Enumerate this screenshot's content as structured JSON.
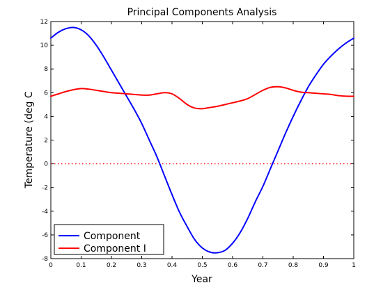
{
  "chart_data": {
    "type": "line",
    "title": "Principal Components Analysis",
    "xlabel": "Year",
    "ylabel": "Temperature (deg C",
    "xlim": [
      0,
      1
    ],
    "ylim": [
      -8,
      12
    ],
    "xticks": [
      0,
      0.1,
      0.2,
      0.3,
      0.4,
      0.5,
      0.6,
      0.7,
      0.8,
      0.9,
      1
    ],
    "xtick_labels": [
      "0",
      "0.1",
      "0.2",
      "0.3",
      "0.4",
      "0.5",
      "0.6",
      "0.7",
      "0.8",
      "0.9",
      "1"
    ],
    "yticks": [
      -8,
      -6,
      -4,
      -2,
      0,
      2,
      4,
      6,
      8,
      10,
      12
    ],
    "ytick_labels": [
      "-8",
      "-6",
      "-4",
      "-2",
      "0",
      "2",
      "4",
      "6",
      "8",
      "10",
      "12"
    ],
    "grid": false,
    "legend_placement": "bottom-left",
    "series": [
      {
        "name": "Component",
        "color": "#0000ff",
        "x": [
          0,
          0.025,
          0.05,
          0.075,
          0.1,
          0.125,
          0.15,
          0.175,
          0.2,
          0.225,
          0.25,
          0.275,
          0.3,
          0.325,
          0.35,
          0.375,
          0.4,
          0.425,
          0.45,
          0.475,
          0.5,
          0.525,
          0.55,
          0.575,
          0.6,
          0.625,
          0.65,
          0.675,
          0.7,
          0.725,
          0.75,
          0.775,
          0.8,
          0.825,
          0.85,
          0.875,
          0.9,
          0.925,
          0.95,
          0.975,
          1
        ],
        "y": [
          10.6,
          11.1,
          11.4,
          11.5,
          11.3,
          10.8,
          10.0,
          9.0,
          7.9,
          6.8,
          5.7,
          4.6,
          3.4,
          2.0,
          0.6,
          -1.0,
          -2.6,
          -4.1,
          -5.3,
          -6.4,
          -7.1,
          -7.45,
          -7.5,
          -7.3,
          -6.7,
          -5.8,
          -4.6,
          -3.2,
          -1.9,
          -0.4,
          1.1,
          2.6,
          4.0,
          5.3,
          6.5,
          7.5,
          8.4,
          9.1,
          9.7,
          10.2,
          10.6
        ]
      },
      {
        "name": "Component I",
        "color": "#ff0000",
        "x": [
          0,
          0.025,
          0.05,
          0.075,
          0.1,
          0.125,
          0.15,
          0.175,
          0.2,
          0.225,
          0.25,
          0.275,
          0.3,
          0.325,
          0.35,
          0.375,
          0.4,
          0.425,
          0.45,
          0.475,
          0.5,
          0.525,
          0.55,
          0.575,
          0.6,
          0.625,
          0.65,
          0.675,
          0.7,
          0.725,
          0.75,
          0.775,
          0.8,
          0.825,
          0.85,
          0.875,
          0.9,
          0.925,
          0.95,
          0.975,
          1
        ],
        "y": [
          5.7,
          5.9,
          6.1,
          6.25,
          6.35,
          6.3,
          6.2,
          6.1,
          6.0,
          5.95,
          5.9,
          5.85,
          5.8,
          5.8,
          5.9,
          6.0,
          5.9,
          5.5,
          5.0,
          4.7,
          4.65,
          4.75,
          4.85,
          5.0,
          5.15,
          5.3,
          5.5,
          5.85,
          6.2,
          6.45,
          6.5,
          6.4,
          6.2,
          6.05,
          6.0,
          5.95,
          5.9,
          5.85,
          5.75,
          5.7,
          5.7
        ]
      }
    ],
    "reference_line": {
      "y": 0,
      "color": "#ff0000",
      "style": "dotted"
    }
  }
}
